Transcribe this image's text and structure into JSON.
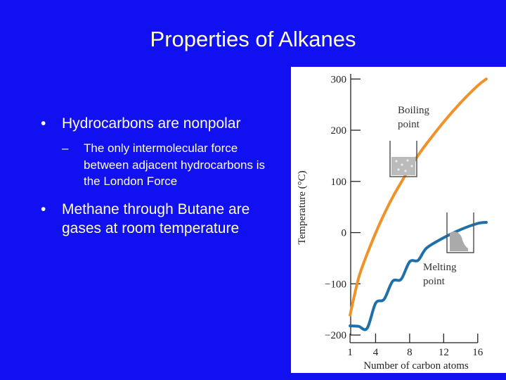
{
  "slide": {
    "title": "Properties of Alkanes",
    "bullets": [
      {
        "text": "Hydrocarbons are nonpolar",
        "sub": [
          "The only intermolecular force between adjacent hydrocarbons is the London Force"
        ]
      },
      {
        "text": "Methane through Butane are gases at room temperature",
        "sub": []
      }
    ],
    "bullet_glyph": "•",
    "sub_glyph": "–"
  },
  "chart_data": {
    "type": "line",
    "xlabel": "Number of carbon atoms",
    "ylabel": "Temperature (°C)",
    "xticks": [
      1,
      4,
      8,
      12,
      16
    ],
    "yticks": [
      300,
      200,
      100,
      0,
      -100,
      -200
    ],
    "xlim": [
      0,
      18
    ],
    "ylim": [
      -215,
      310
    ],
    "series": [
      {
        "name": "Boiling point",
        "color": "#f0922a",
        "x": [
          1,
          2,
          3,
          4,
          5,
          6,
          7,
          8,
          9,
          10,
          12,
          14,
          16,
          17
        ],
        "y": [
          -161,
          -89,
          -42,
          -1,
          36,
          69,
          98,
          126,
          151,
          174,
          216,
          254,
          287,
          300
        ]
      },
      {
        "name": "Melting point",
        "color": "#1f6fa8",
        "x": [
          1,
          2,
          3,
          4,
          5,
          6,
          7,
          8,
          9,
          10,
          12,
          14,
          16,
          17
        ],
        "y": [
          -182,
          -183,
          -187,
          -138,
          -130,
          -95,
          -91,
          -57,
          -54,
          -30,
          -10,
          6,
          18,
          20
        ]
      }
    ],
    "annotations": [
      {
        "text": [
          "Boiling",
          "point"
        ],
        "series": "Boiling point"
      },
      {
        "text": [
          "Melting",
          "point"
        ],
        "series": "Melting point"
      }
    ],
    "colors": {
      "axis": "#222222",
      "figure_bg": "#ffffff",
      "beaker": "#555555",
      "liquid": "#bbbbbb",
      "solid": "#aaaaaa"
    }
  }
}
